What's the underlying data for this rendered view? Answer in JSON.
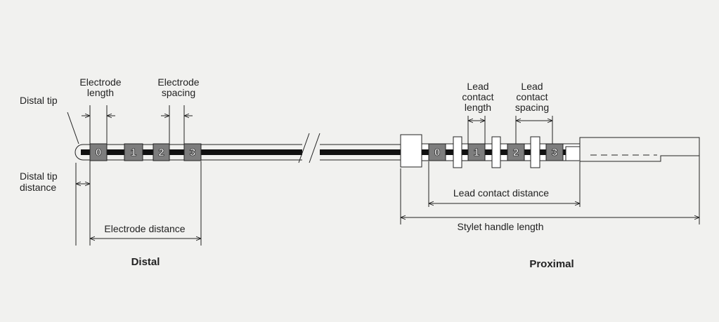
{
  "labels": {
    "distal_tip": "Distal tip",
    "electrode_length": [
      "Electrode",
      "length"
    ],
    "electrode_spacing": [
      "Electrode",
      "spacing"
    ],
    "distal_tip_distance": [
      "Distal tip",
      "distance"
    ],
    "electrode_distance": "Electrode distance",
    "distal": "Distal",
    "lead_contact_length": [
      "Lead",
      "contact",
      "length"
    ],
    "lead_contact_spacing": [
      "Lead",
      "contact",
      "spacing"
    ],
    "lead_contact_distance": "Lead contact distance",
    "stylet_handle_length": "Stylet handle length",
    "proximal": "Proximal"
  },
  "distal_electrodes": [
    "0",
    "1",
    "2",
    "3"
  ],
  "proximal_contacts": [
    "0",
    "1",
    "2",
    "3"
  ]
}
